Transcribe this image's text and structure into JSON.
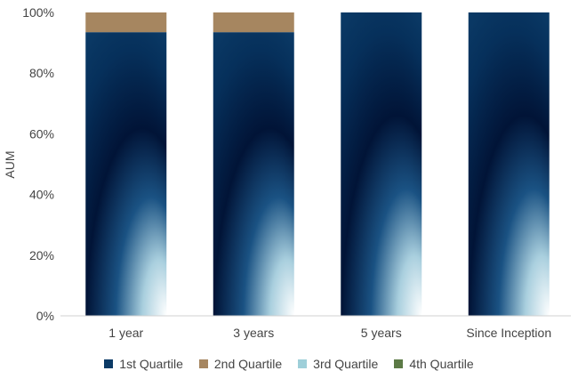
{
  "chart_data": {
    "type": "bar",
    "stacked": true,
    "categories": [
      "1 year",
      "3 years",
      "5 years",
      "Since Inception"
    ],
    "ylabel": "AUM",
    "ylim": [
      0,
      100
    ],
    "y_ticks": [
      "0%",
      "20%",
      "40%",
      "60%",
      "80%",
      "100%"
    ],
    "y_tick_values": [
      0,
      20,
      40,
      60,
      80,
      100
    ],
    "grid": false,
    "legend_position": "bottom",
    "series": [
      {
        "name": "1st Quartile",
        "values": [
          93.5,
          93.5,
          100,
          100
        ],
        "color": "#0b3a66"
      },
      {
        "name": "2nd Quartile",
        "values": [
          6.5,
          6.5,
          0,
          0
        ],
        "color": "#a68660"
      },
      {
        "name": "3rd Quartile",
        "values": [
          0,
          0,
          0,
          0
        ],
        "color": "#9ecfd9"
      },
      {
        "name": "4th Quartile",
        "values": [
          0,
          0,
          0,
          0
        ],
        "color": "#5c7a46"
      }
    ]
  }
}
